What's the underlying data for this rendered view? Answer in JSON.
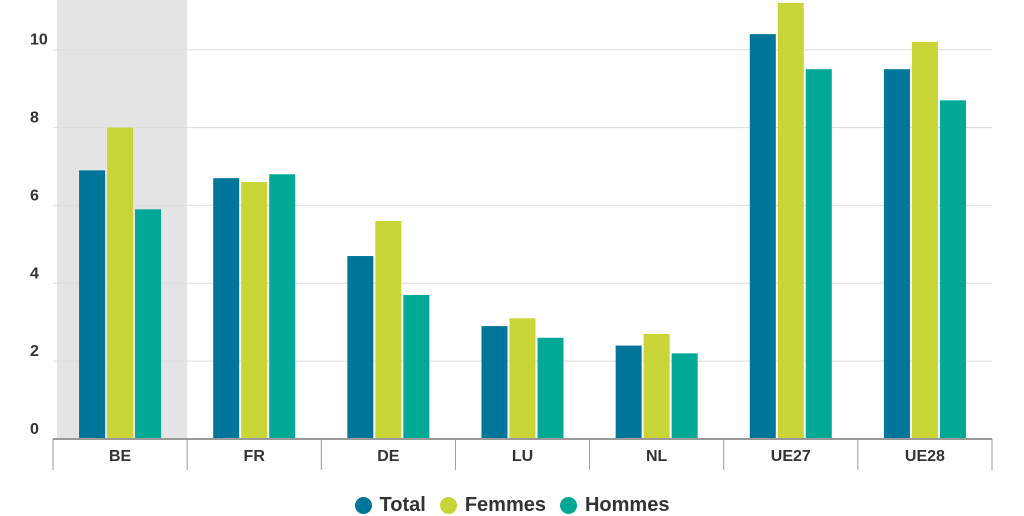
{
  "chart_data": {
    "type": "bar",
    "categories": [
      "BE",
      "FR",
      "DE",
      "LU",
      "NL",
      "UE27",
      "UE28"
    ],
    "highlighted_category": "BE",
    "series": [
      {
        "name": "Total",
        "color": "#00759a",
        "values": [
          6.9,
          6.7,
          4.7,
          2.9,
          2.4,
          10.4,
          9.5
        ]
      },
      {
        "name": "Femmes",
        "color": "#c9d536",
        "values": [
          8.0,
          6.6,
          5.6,
          3.1,
          2.7,
          11.2,
          10.2
        ]
      },
      {
        "name": "Hommes",
        "color": "#00a896",
        "values": [
          5.9,
          6.8,
          3.7,
          2.6,
          2.2,
          9.5,
          8.7
        ]
      }
    ],
    "yticks": [
      "0",
      "2",
      "4",
      "6",
      "8",
      "10"
    ],
    "ylim": [
      0,
      11.2
    ],
    "title": "",
    "xlabel": "",
    "ylabel": "",
    "grid": true,
    "legend_position": "bottom-center"
  }
}
